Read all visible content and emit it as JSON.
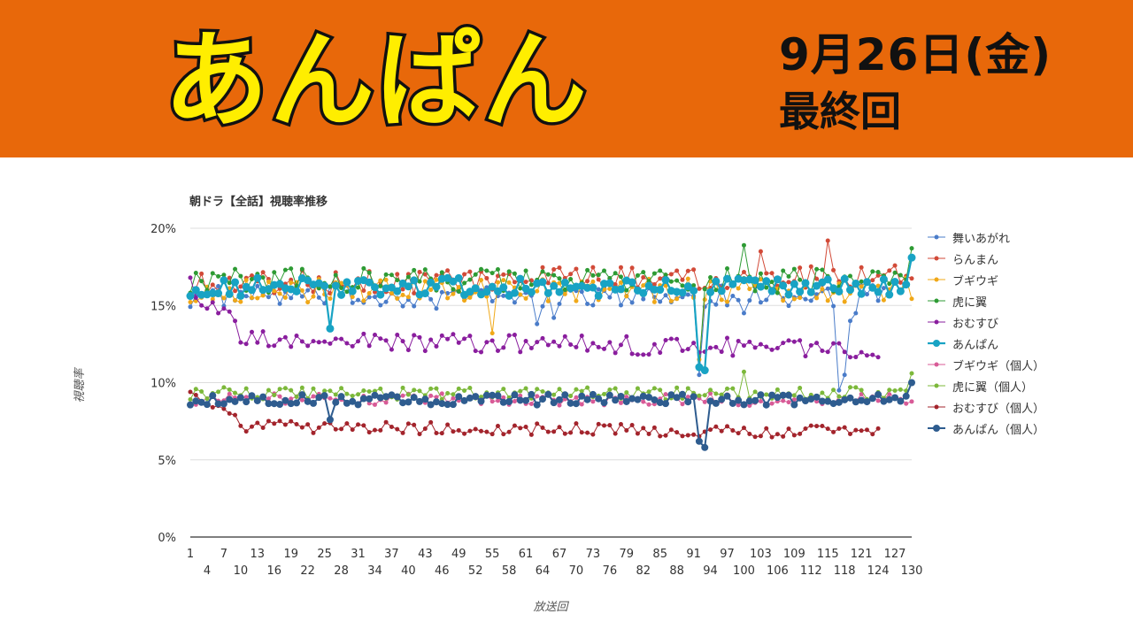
{
  "banner": {
    "title": "あんぱん",
    "date": "9月26日(金)",
    "final": "最終回",
    "bg_color": "#e8680a",
    "title_fill": "#ffee00"
  },
  "chart_data": {
    "type": "line",
    "title": "朝ドラ【全話】視聴率推移",
    "xlabel": "放送回",
    "ylabel": "視聴率",
    "ylim": [
      0,
      20
    ],
    "xlim": [
      1,
      130
    ],
    "yticks": [
      "0%",
      "5%",
      "10%",
      "15%",
      "20%"
    ],
    "xticks_row1": [
      1,
      7,
      13,
      19,
      25,
      31,
      37,
      43,
      49,
      55,
      61,
      67,
      73,
      79,
      85,
      91,
      97,
      103,
      109,
      115,
      121,
      127
    ],
    "xticks_row2": [
      4,
      10,
      16,
      22,
      28,
      34,
      40,
      46,
      52,
      58,
      64,
      70,
      76,
      82,
      88,
      94,
      100,
      106,
      112,
      118,
      124,
      130
    ],
    "grid": true,
    "legend_position": "right",
    "series": [
      {
        "name": "舞いあがれ",
        "color": "#4a7cc9",
        "marker_size": 2.5,
        "line_width": 1,
        "base": 15.6,
        "noise": 0.7,
        "length": 125,
        "dips": {
          "45": 14.8,
          "63": 13.8,
          "66": 14.2,
          "91": 15.6,
          "92": 10.5,
          "100": 14.5,
          "117": 9.5,
          "118": 10.5,
          "119": 14.0,
          "120": 14.5
        }
      },
      {
        "name": "らんまん",
        "color": "#d24a38",
        "marker_size": 2.5,
        "line_width": 1,
        "base": 16.4,
        "noise": 0.8,
        "length": 130,
        "trend": 0.6,
        "peaks": {
          "115": 19.2,
          "103": 18.5
        }
      },
      {
        "name": "ブギウギ",
        "color": "#f0a818",
        "marker_size": 2.5,
        "line_width": 1,
        "base": 16.0,
        "noise": 0.8,
        "length": 130,
        "dips": {
          "55": 13.2,
          "91": 15.5,
          "92": 11.5
        }
      },
      {
        "name": "虎に翼",
        "color": "#2e9b34",
        "marker_size": 2.5,
        "line_width": 1,
        "base": 16.6,
        "noise": 0.8,
        "length": 130,
        "dips": {
          "91": 16.3,
          "92": 11.0
        },
        "peaks": {
          "100": 18.9,
          "130": 18.7
        }
      },
      {
        "name": "おむすび",
        "color": "#8a1e9e",
        "marker_size": 2.5,
        "line_width": 1,
        "base": 12.8,
        "noise": 0.6,
        "length": 124,
        "start": [
          16.8,
          15.5,
          15.0,
          14.8,
          15.2,
          14.5,
          14.8,
          14.6,
          14.0,
          12.6
        ],
        "trend": -0.6
      },
      {
        "name": "あんぱん",
        "color": "#18a3c4",
        "marker_size": 4.5,
        "line_width": 2.2,
        "base": 16.2,
        "noise": 0.6,
        "length": 130,
        "dips": {
          "26": 13.5,
          "92": 11.0,
          "93": 10.8
        },
        "end": 18.1
      },
      {
        "name": "ブギウギ（個人）",
        "color": "#d85b97",
        "marker_size": 2.5,
        "line_width": 1,
        "base": 8.9,
        "noise": 0.4,
        "length": 130
      },
      {
        "name": "虎に翼（個人）",
        "color": "#7cb83a",
        "marker_size": 2.5,
        "line_width": 1,
        "base": 9.3,
        "noise": 0.4,
        "length": 130,
        "peaks": {
          "100": 10.7,
          "130": 10.6
        }
      },
      {
        "name": "おむすび（個人）",
        "color": "#a3242c",
        "marker_size": 2.5,
        "line_width": 1,
        "base": 7.2,
        "noise": 0.4,
        "length": 124,
        "start": [
          9.4,
          9.2,
          8.8,
          8.6,
          8.4,
          8.5,
          8.3,
          8.0,
          7.9,
          7.2
        ],
        "trend": -0.4
      },
      {
        "name": "あんぱん（個人）",
        "color": "#2e5c8f",
        "marker_size": 4.0,
        "line_width": 2.0,
        "base": 8.9,
        "noise": 0.35,
        "length": 130,
        "dips": {
          "26": 7.6,
          "92": 6.2,
          "93": 5.8
        },
        "end": 10.0
      }
    ]
  }
}
